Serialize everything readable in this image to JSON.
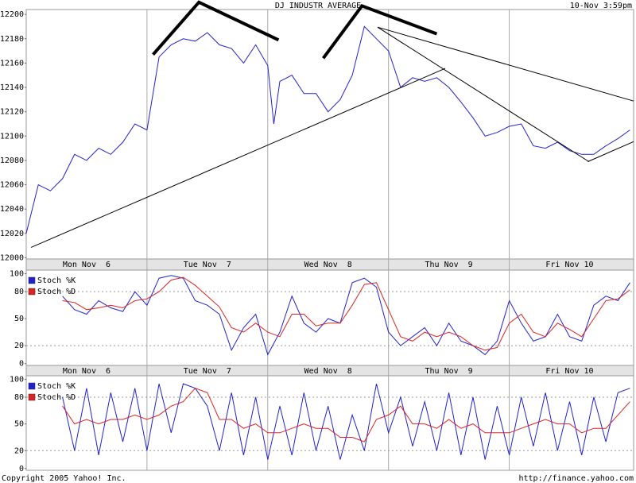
{
  "chart_data": [
    {
      "type": "line",
      "title": "DJ INDUSTR AVERAGE",
      "subtitle": "10-Nov 3:59pm",
      "color": "#2222cc",
      "x": [
        0,
        0.1,
        0.2,
        0.3,
        0.4,
        0.5,
        0.6,
        0.7,
        0.8,
        0.9,
        1.0,
        1.1,
        1.2,
        1.3,
        1.4,
        1.5,
        1.6,
        1.7,
        1.8,
        1.9,
        2.0,
        2.05,
        2.1,
        2.2,
        2.3,
        2.4,
        2.5,
        2.6,
        2.7,
        2.8,
        2.9,
        3.0,
        3.1,
        3.2,
        3.3,
        3.4,
        3.5,
        3.6,
        3.7,
        3.8,
        3.9,
        4.0,
        4.1,
        4.2,
        4.3,
        4.4,
        4.5,
        4.6,
        4.7,
        4.8,
        4.9,
        5.0
      ],
      "values": [
        12020,
        12060,
        12055,
        12065,
        12085,
        12080,
        12090,
        12085,
        12095,
        12110,
        12105,
        12165,
        12175,
        12180,
        12178,
        12185,
        12175,
        12172,
        12160,
        12175,
        12158,
        12110,
        12145,
        12150,
        12135,
        12135,
        12120,
        12130,
        12150,
        12190,
        12180,
        12170,
        12140,
        12148,
        12145,
        12148,
        12140,
        12128,
        12115,
        12100,
        12103,
        12108,
        12110,
        12092,
        12090,
        12095,
        12088,
        12085,
        12085,
        12092,
        12098,
        12105
      ],
      "xlim": [
        0,
        5.03
      ],
      "ylim": [
        11999,
        12204
      ],
      "yticks": [
        12000,
        12020,
        12040,
        12060,
        12080,
        12100,
        12120,
        12140,
        12160,
        12180,
        12200
      ],
      "xticks": [
        {
          "value": 0.5,
          "label": "Mon Nov  6"
        },
        {
          "value": 1.5,
          "label": "Tue Nov  7"
        },
        {
          "value": 2.5,
          "label": "Wed Nov  8"
        },
        {
          "value": 3.5,
          "label": "Thu Nov  9"
        },
        {
          "value": 4.5,
          "label": "Fri Nov 10"
        }
      ],
      "xgrid": [
        1,
        2,
        3,
        4
      ],
      "trendlines": [
        {
          "width": 1,
          "points": [
            [
              0.04,
              12008.5
            ],
            [
              3.47,
              12155.6
            ]
          ]
        },
        {
          "width": 1,
          "points": [
            [
              2.91,
              12189.5
            ],
            [
              5.03,
              12128.8
            ]
          ]
        },
        {
          "width": 1,
          "points": [
            [
              2.91,
              12189.5
            ],
            [
              4.66,
              12079
            ]
          ]
        },
        {
          "width": 1,
          "points": [
            [
              4.65,
              12079
            ],
            [
              5.03,
              12095.4
            ]
          ]
        },
        {
          "width": 4,
          "points": [
            [
              1.05,
              12167
            ],
            [
              1.43,
              12210
            ],
            [
              2.09,
              12179
            ]
          ]
        },
        {
          "width": 4,
          "points": [
            [
              2.46,
              12164
            ],
            [
              2.78,
              12207
            ],
            [
              3.4,
              12184
            ]
          ]
        }
      ]
    },
    {
      "type": "line",
      "x": [
        0.3,
        0.4,
        0.5,
        0.6,
        0.7,
        0.8,
        0.9,
        1.0,
        1.1,
        1.2,
        1.3,
        1.4,
        1.5,
        1.6,
        1.7,
        1.8,
        1.9,
        2.0,
        2.1,
        2.2,
        2.3,
        2.4,
        2.5,
        2.6,
        2.7,
        2.8,
        2.9,
        3.0,
        3.1,
        3.2,
        3.3,
        3.4,
        3.5,
        3.6,
        3.7,
        3.8,
        3.9,
        4.0,
        4.1,
        4.2,
        4.3,
        4.4,
        4.5,
        4.6,
        4.7,
        4.8,
        4.9,
        5.0
      ],
      "series": [
        {
          "name": "Stoch %K",
          "color": "#2222cc",
          "values": [
            75,
            60,
            55,
            70,
            62,
            58,
            80,
            65,
            95,
            98,
            95,
            70,
            65,
            55,
            15,
            40,
            55,
            10,
            35,
            75,
            45,
            35,
            50,
            45,
            90,
            95,
            85,
            35,
            20,
            30,
            40,
            20,
            45,
            25,
            20,
            10,
            25,
            70,
            45,
            25,
            30,
            55,
            30,
            25,
            65,
            75,
            70,
            90
          ]
        },
        {
          "name": "Stoch %D",
          "color": "#dd2222",
          "values": [
            70,
            68,
            60,
            62,
            65,
            62,
            70,
            72,
            80,
            93,
            96,
            87,
            75,
            63,
            40,
            35,
            45,
            35,
            30,
            55,
            55,
            42,
            45,
            45,
            65,
            88,
            90,
            60,
            30,
            25,
            35,
            30,
            35,
            30,
            20,
            15,
            18,
            45,
            55,
            35,
            30,
            45,
            38,
            30,
            50,
            70,
            72,
            82
          ]
        }
      ],
      "xlim": [
        0,
        5.03
      ],
      "ylim": [
        -2,
        104
      ],
      "yticks": [
        0,
        20,
        50,
        80,
        100
      ],
      "hlines": [
        20,
        80
      ],
      "xticks": [
        {
          "value": 0.5,
          "label": "Mon Nov  6"
        },
        {
          "value": 1.5,
          "label": "Tue Nov  7"
        },
        {
          "value": 2.5,
          "label": "Wed Nov  8"
        },
        {
          "value": 3.5,
          "label": "Thu Nov  9"
        },
        {
          "value": 4.5,
          "label": "Fri Nov 10"
        }
      ],
      "xgrid": [
        1,
        2,
        3,
        4
      ]
    },
    {
      "type": "line",
      "x": [
        0.3,
        0.4,
        0.5,
        0.6,
        0.7,
        0.8,
        0.9,
        1.0,
        1.1,
        1.2,
        1.3,
        1.4,
        1.5,
        1.6,
        1.7,
        1.8,
        1.9,
        2.0,
        2.1,
        2.2,
        2.3,
        2.4,
        2.5,
        2.6,
        2.7,
        2.8,
        2.9,
        3.0,
        3.1,
        3.2,
        3.3,
        3.4,
        3.5,
        3.6,
        3.7,
        3.8,
        3.9,
        4.0,
        4.1,
        4.2,
        4.3,
        4.4,
        4.5,
        4.6,
        4.7,
        4.8,
        4.9,
        5.0
      ],
      "series": [
        {
          "name": "Stoch %K",
          "color": "#2222cc",
          "values": [
            80,
            20,
            90,
            15,
            85,
            30,
            90,
            20,
            95,
            40,
            95,
            90,
            70,
            20,
            85,
            15,
            80,
            10,
            70,
            15,
            85,
            20,
            70,
            10,
            60,
            20,
            95,
            40,
            80,
            25,
            75,
            20,
            85,
            15,
            80,
            10,
            70,
            15,
            80,
            25,
            85,
            20,
            75,
            15,
            80,
            30,
            85,
            90
          ]
        },
        {
          "name": "Stoch %D",
          "color": "#dd2222",
          "values": [
            70,
            50,
            55,
            50,
            55,
            55,
            60,
            55,
            60,
            70,
            75,
            90,
            85,
            55,
            55,
            45,
            50,
            40,
            40,
            45,
            50,
            45,
            45,
            35,
            35,
            30,
            55,
            60,
            70,
            50,
            50,
            45,
            55,
            45,
            50,
            40,
            40,
            40,
            45,
            50,
            55,
            50,
            50,
            40,
            45,
            45,
            60,
            75
          ]
        }
      ],
      "xlim": [
        0,
        5.03
      ],
      "ylim": [
        -2,
        104
      ],
      "yticks": [
        0,
        20,
        50,
        80,
        100
      ],
      "hlines": [
        20,
        80
      ],
      "xgrid": [
        1,
        2,
        3,
        4
      ]
    }
  ],
  "footer": {
    "left": "Copyright 2005 Yahoo! Inc.",
    "right": "http://finance.yahoo.com"
  }
}
